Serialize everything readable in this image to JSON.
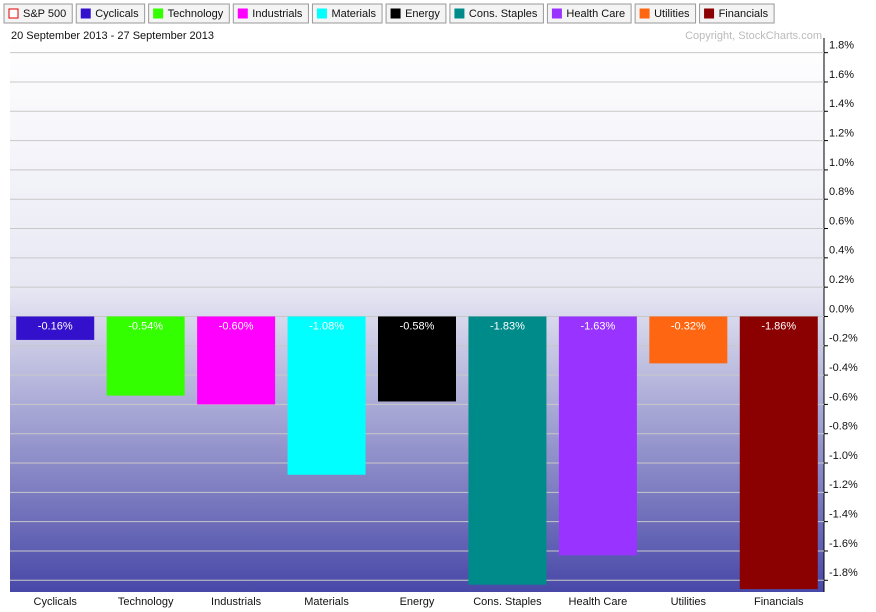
{
  "chart_data": {
    "type": "bar",
    "subtitle": "20 September 2013 - 27 September 2013",
    "credit": "Copyright, StockCharts.com",
    "legend": [
      {
        "name": "S&P 500",
        "color": "#e00000",
        "hollow": true
      },
      {
        "name": "Cyclicals",
        "color": "#3311cc"
      },
      {
        "name": "Technology",
        "color": "#33ff00"
      },
      {
        "name": "Industrials",
        "color": "#ff00ff"
      },
      {
        "name": "Materials",
        "color": "#00ffff"
      },
      {
        "name": "Energy",
        "color": "#000000"
      },
      {
        "name": "Cons. Staples",
        "color": "#008b8b"
      },
      {
        "name": "Health Care",
        "color": "#9933ff"
      },
      {
        "name": "Utilities",
        "color": "#ff6611"
      },
      {
        "name": "Financials",
        "color": "#8b0000"
      }
    ],
    "categories": [
      "Cyclicals",
      "Technology",
      "Industrials",
      "Materials",
      "Energy",
      "Cons. Staples",
      "Health Care",
      "Utilities",
      "Financials"
    ],
    "values": [
      -0.16,
      -0.54,
      -0.6,
      -1.08,
      -0.58,
      -1.83,
      -1.63,
      -0.32,
      -1.86
    ],
    "value_labels": [
      "-0.16%",
      "-0.54%",
      "-0.60%",
      "-1.08%",
      "-0.58%",
      "-1.83%",
      "-1.63%",
      "-0.32%",
      "-1.86%"
    ],
    "colors": [
      "#3311cc",
      "#33ff00",
      "#ff00ff",
      "#00ffff",
      "#000000",
      "#008b8b",
      "#9933ff",
      "#ff6611",
      "#8b0000"
    ],
    "ylim": [
      -1.88,
      1.9
    ],
    "yticks": [
      {
        "value": 1.8,
        "label": "1.8%"
      },
      {
        "value": 1.6,
        "label": "1.6%"
      },
      {
        "value": 1.4,
        "label": "1.4%"
      },
      {
        "value": 1.2,
        "label": "1.2%"
      },
      {
        "value": 1.0,
        "label": "1.0%"
      },
      {
        "value": 0.8,
        "label": "0.8%"
      },
      {
        "value": 0.6,
        "label": "0.6%"
      },
      {
        "value": 0.4,
        "label": "0.4%"
      },
      {
        "value": 0.2,
        "label": "0.2%"
      },
      {
        "value": 0,
        "label": "0.0%"
      },
      {
        "value": -0.2,
        "label": "-0.2%"
      },
      {
        "value": -0.4,
        "label": "-0.4%"
      },
      {
        "value": -0.6,
        "label": "-0.6%"
      },
      {
        "value": -0.8,
        "label": "-0.8%"
      },
      {
        "value": -1.0,
        "label": "-1.0%"
      },
      {
        "value": -1.2,
        "label": "-1.2%"
      },
      {
        "value": -1.4,
        "label": "-1.4%"
      },
      {
        "value": -1.6,
        "label": "-1.6%"
      },
      {
        "value": -1.8,
        "label": "-1.8%"
      }
    ],
    "grid": true
  }
}
